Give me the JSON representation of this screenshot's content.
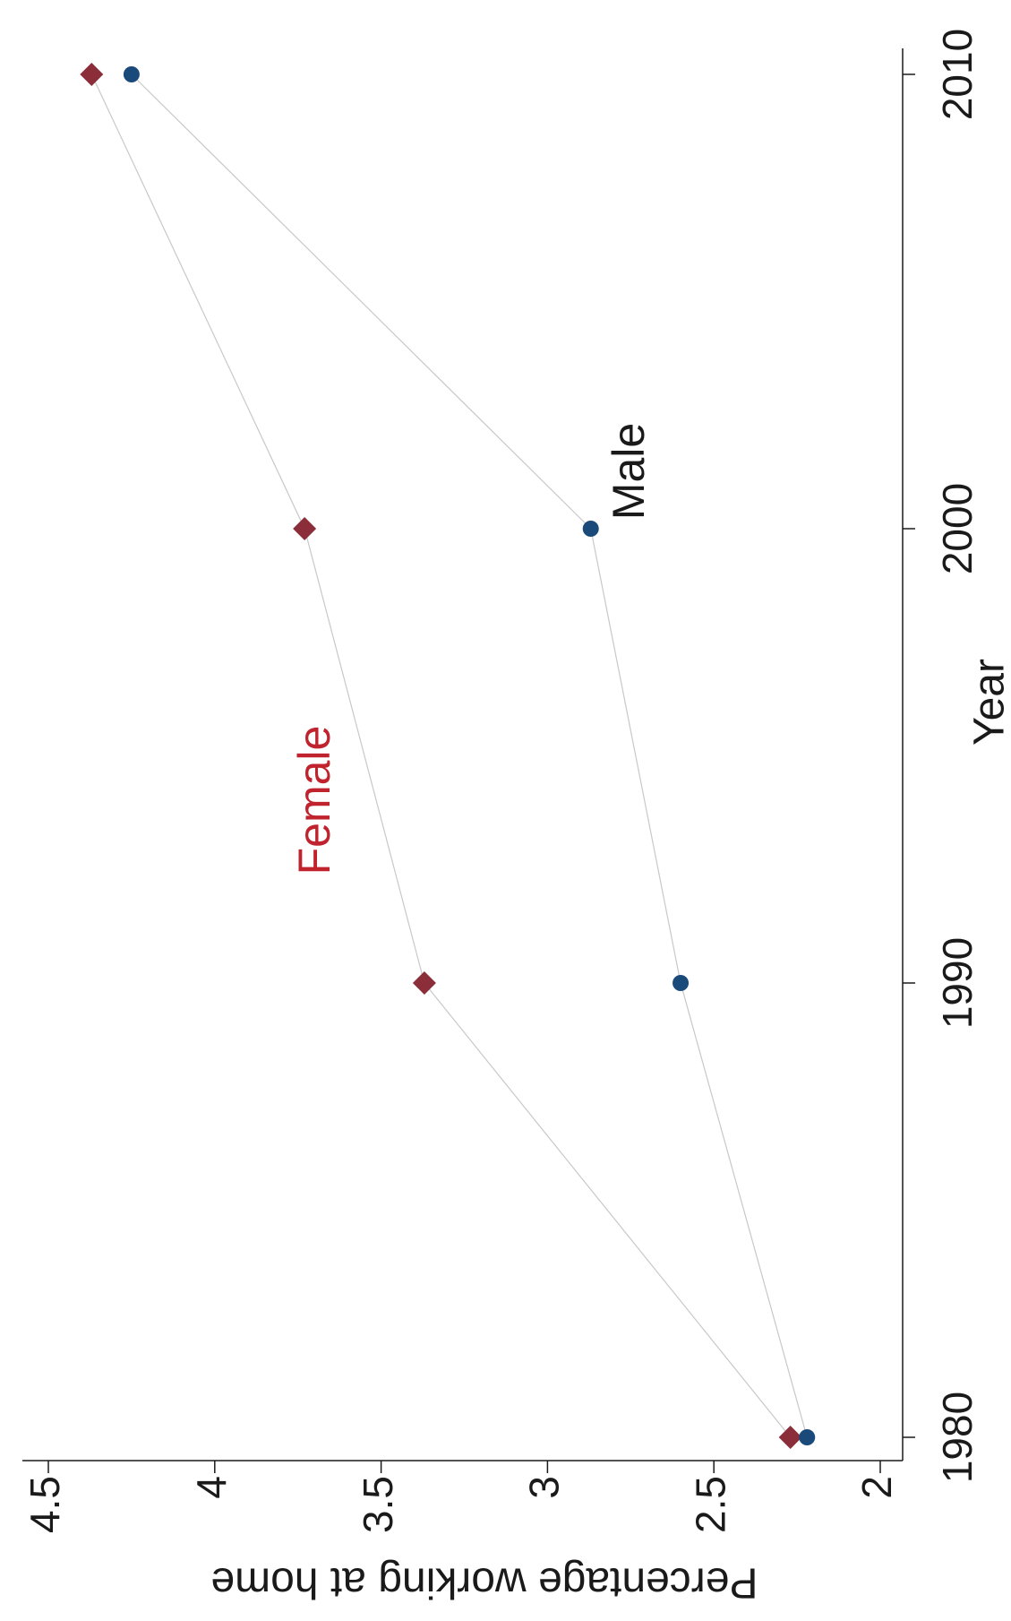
{
  "chart_data": {
    "type": "line",
    "x": [
      1980,
      1990,
      2000,
      2010
    ],
    "xlabel": "Year",
    "ylabel": "Percentage working at home",
    "xlim": [
      1980,
      2010
    ],
    "xticks": [
      1980,
      1990,
      2000,
      2010
    ],
    "ylim": [
      2,
      4.5
    ],
    "yticks": [
      2,
      2.5,
      3,
      3.5,
      4,
      4.5
    ],
    "series": [
      {
        "name": "Female",
        "color": "#8b2e3a",
        "label_color": "#c0232e",
        "marker": "diamond",
        "values": [
          2.27,
          3.37,
          3.73,
          4.37
        ]
      },
      {
        "name": "Male",
        "color": "#1a4a7a",
        "label_color": "#1a1a1a",
        "marker": "circle",
        "values": [
          2.22,
          2.6,
          2.87,
          4.25
        ]
      }
    ]
  }
}
